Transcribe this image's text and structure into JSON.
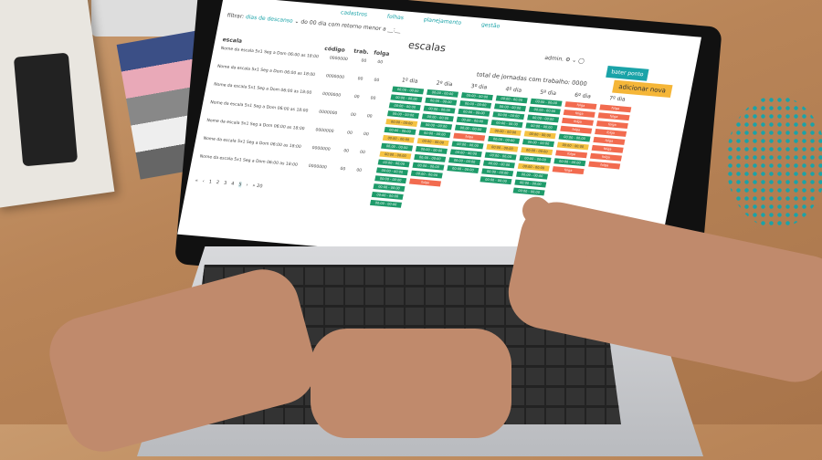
{
  "app": {
    "nav": [
      "cadastros",
      "folhas",
      "planejamento",
      "gestão"
    ],
    "filter": {
      "label": "filtrar:",
      "value": "dias de descanso",
      "do": "do",
      "do_value": "00",
      "dia_com": "dia com",
      "dia_com_value": "retorno",
      "menor": "menor",
      "a": "a",
      "a_value": "__:__"
    },
    "title": "escalas",
    "user": "admin.",
    "bater_ponto": "bater ponto",
    "total": "total de jornadas com trabalho: 0000",
    "adicionar": "adicionar nova",
    "headers": {
      "escala": "escala",
      "codigo": "código",
      "trab": "trab.",
      "folga": "folga"
    },
    "rows": [
      {
        "name": "Nome da escala 5x1 Seg a Dom 06:00 as 18:00",
        "codigo": "0000000",
        "trab": "00",
        "folga": "00"
      },
      {
        "name": "Nome da escala 5x1 Seg a Dom 06:00 as 18:00",
        "codigo": "0000000",
        "trab": "00",
        "folga": "00"
      },
      {
        "name": "Nome da escala 5x1 Seg a Dom 06:00 as 18:00",
        "codigo": "0000000",
        "trab": "00",
        "folga": "00"
      },
      {
        "name": "Nome da escala 5x1 Seg a Dom 06:00 as 18:00",
        "codigo": "0000000",
        "trab": "00",
        "folga": "00"
      },
      {
        "name": "Nome da escala 5x1 Seg a Dom 06:00 as 18:00",
        "codigo": "0000000",
        "trab": "00",
        "folga": "00"
      },
      {
        "name": "Nome da escala 5x1 Seg a Dom 06:00 as 18:00",
        "codigo": "0000000",
        "trab": "00",
        "folga": "00"
      },
      {
        "name": "Nome da escala 5x1 Seg a Dom 06:00 as 18:00",
        "codigo": "0000000",
        "trab": "00",
        "folga": "00"
      }
    ],
    "work_label": "00:00 - 00:00",
    "off_label": "folga",
    "days": [
      {
        "label": "1º dia",
        "cells": [
          "work",
          "work",
          "work",
          "work",
          "partial",
          "work",
          "partial",
          "work",
          "partial",
          "work",
          "work",
          "work",
          "work",
          "work",
          "work"
        ]
      },
      {
        "label": "2º dia",
        "cells": [
          "work",
          "work",
          "work",
          "work",
          "work",
          "work",
          "partial",
          "work",
          "work",
          "work",
          "work",
          "off"
        ]
      },
      {
        "label": "3º dia",
        "cells": [
          "work",
          "work",
          "work",
          "work",
          "work",
          "off",
          "work",
          "work",
          "work",
          "work"
        ]
      },
      {
        "label": "4º dia",
        "cells": [
          "work",
          "work",
          "work",
          "work",
          "partial",
          "work",
          "partial",
          "work",
          "work",
          "work",
          "work"
        ]
      },
      {
        "label": "5º dia",
        "cells": [
          "work",
          "work",
          "work",
          "work",
          "partial",
          "work",
          "partial",
          "work",
          "partial",
          "work",
          "work",
          "work"
        ]
      },
      {
        "label": "6º dia",
        "cells": [
          "off",
          "off",
          "off",
          "off",
          "work",
          "partial",
          "off",
          "work",
          "off"
        ]
      },
      {
        "label": "7º dia",
        "cells": [
          "off",
          "off",
          "off",
          "off",
          "off",
          "off",
          "off",
          "off"
        ]
      }
    ],
    "pager": [
      "«",
      "‹",
      "1",
      "2",
      "3",
      "4",
      "5",
      "›",
      "» 20"
    ],
    "pager_active": "5"
  },
  "colors": {
    "accent": "#1aa3a8",
    "work": "#1e9b6a",
    "partial": "#f5c242",
    "off": "#f26b4f",
    "add": "#f5b638"
  }
}
